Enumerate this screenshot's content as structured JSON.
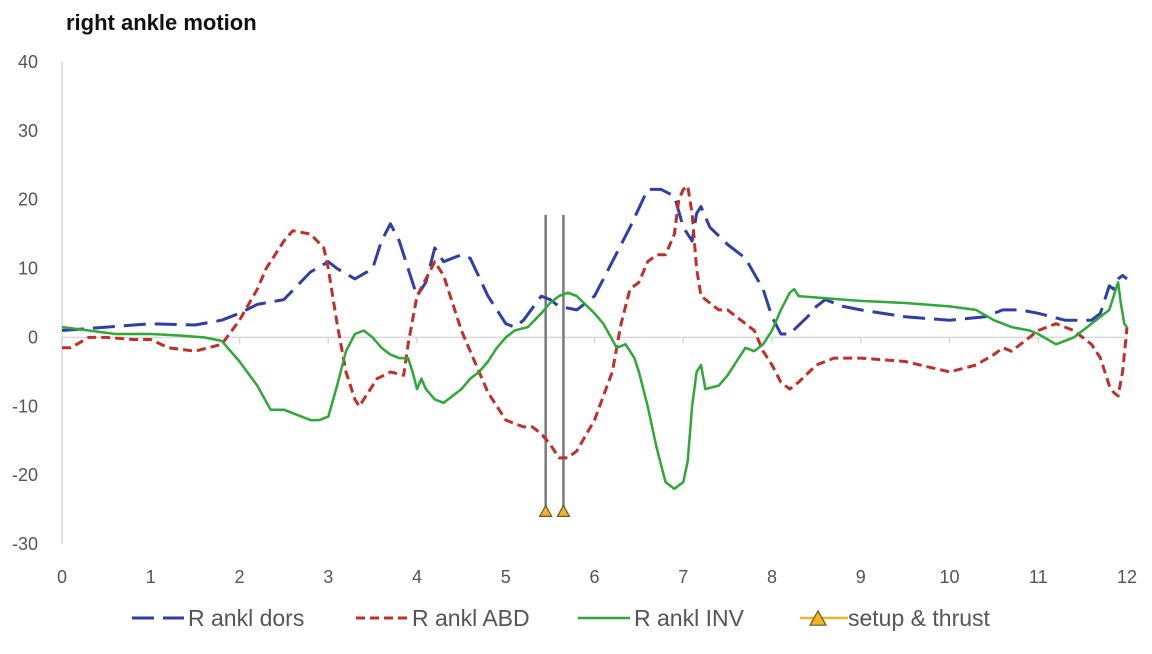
{
  "chart_data": {
    "type": "line",
    "title": "right ankle motion",
    "xlabel": "",
    "ylabel": "",
    "xlim": [
      0,
      12
    ],
    "ylim": [
      -30,
      40
    ],
    "xticks": [
      "0",
      "1",
      "2",
      "3",
      "4",
      "5",
      "6",
      "7",
      "8",
      "9",
      "10",
      "11",
      "12"
    ],
    "yticks": [
      "40",
      "30",
      "20",
      "10",
      "0",
      "-10",
      "-20",
      "-30"
    ],
    "grid": false,
    "legend_position": "bottom",
    "series": [
      {
        "name": "R ankl dors",
        "color": "#2e3fa8",
        "style": "long-dash",
        "points": [
          [
            0,
            1
          ],
          [
            0.5,
            1.5
          ],
          [
            1,
            2
          ],
          [
            1.5,
            1.8
          ],
          [
            1.8,
            2.5
          ],
          [
            2,
            3.5
          ],
          [
            2.2,
            4.8
          ],
          [
            2.5,
            5.5
          ],
          [
            2.8,
            9.5
          ],
          [
            3,
            11
          ],
          [
            3.1,
            10
          ],
          [
            3.3,
            8.5
          ],
          [
            3.5,
            10
          ],
          [
            3.6,
            14
          ],
          [
            3.7,
            16.5
          ],
          [
            3.8,
            14
          ],
          [
            3.9,
            10
          ],
          [
            4,
            6
          ],
          [
            4.1,
            8
          ],
          [
            4.2,
            13
          ],
          [
            4.3,
            11
          ],
          [
            4.4,
            11.5
          ],
          [
            4.5,
            12
          ],
          [
            4.6,
            11.5
          ],
          [
            4.8,
            6
          ],
          [
            5,
            2
          ],
          [
            5.1,
            1.5
          ],
          [
            5.2,
            2.5
          ],
          [
            5.4,
            6
          ],
          [
            5.5,
            5.5
          ],
          [
            5.6,
            4.5
          ],
          [
            5.8,
            4
          ],
          [
            6,
            6
          ],
          [
            6.2,
            11
          ],
          [
            6.4,
            16
          ],
          [
            6.6,
            21.5
          ],
          [
            6.75,
            21.5
          ],
          [
            6.9,
            20.5
          ],
          [
            7,
            16
          ],
          [
            7.1,
            14
          ],
          [
            7.15,
            18
          ],
          [
            7.2,
            19
          ],
          [
            7.3,
            16
          ],
          [
            7.5,
            13.5
          ],
          [
            7.7,
            11.5
          ],
          [
            7.9,
            7
          ],
          [
            8,
            3
          ],
          [
            8.1,
            0.5
          ],
          [
            8.2,
            0.5
          ],
          [
            8.4,
            3
          ],
          [
            8.5,
            4.5
          ],
          [
            8.6,
            5.5
          ],
          [
            8.8,
            4.5
          ],
          [
            9,
            4
          ],
          [
            9.5,
            3
          ],
          [
            10,
            2.5
          ],
          [
            10.4,
            3
          ],
          [
            10.6,
            4
          ],
          [
            10.8,
            4
          ],
          [
            11,
            3.5
          ],
          [
            11.3,
            2.5
          ],
          [
            11.6,
            2.5
          ],
          [
            11.7,
            3.5
          ],
          [
            11.8,
            7.5
          ],
          [
            11.85,
            7
          ],
          [
            11.9,
            8.5
          ],
          [
            11.95,
            9
          ],
          [
            12,
            8.5
          ]
        ]
      },
      {
        "name": "R ankl ABD",
        "color": "#c0302a",
        "style": "short-dash",
        "points": [
          [
            0,
            -1.5
          ],
          [
            0.1,
            -1.5
          ],
          [
            0.3,
            0
          ],
          [
            0.5,
            0
          ],
          [
            0.8,
            -0.3
          ],
          [
            1,
            -0.3
          ],
          [
            1.2,
            -1.5
          ],
          [
            1.5,
            -2
          ],
          [
            1.8,
            -1
          ],
          [
            2,
            2.5
          ],
          [
            2.2,
            7
          ],
          [
            2.3,
            10
          ],
          [
            2.5,
            14
          ],
          [
            2.6,
            15.5
          ],
          [
            2.8,
            15
          ],
          [
            2.95,
            13
          ],
          [
            3,
            10
          ],
          [
            3.1,
            2
          ],
          [
            3.2,
            -5
          ],
          [
            3.3,
            -9
          ],
          [
            3.35,
            -10
          ],
          [
            3.45,
            -8
          ],
          [
            3.55,
            -6
          ],
          [
            3.7,
            -5
          ],
          [
            3.85,
            -5.5
          ],
          [
            3.9,
            -1
          ],
          [
            4,
            6
          ],
          [
            4.1,
            8.5
          ],
          [
            4.2,
            11
          ],
          [
            4.3,
            9
          ],
          [
            4.4,
            5
          ],
          [
            4.5,
            1
          ],
          [
            4.7,
            -5
          ],
          [
            4.8,
            -8
          ],
          [
            5,
            -12
          ],
          [
            5.2,
            -13
          ],
          [
            5.3,
            -13
          ],
          [
            5.4,
            -14
          ],
          [
            5.5,
            -15.5
          ],
          [
            5.6,
            -17.5
          ],
          [
            5.7,
            -17.5
          ],
          [
            5.8,
            -16.5
          ],
          [
            6,
            -12
          ],
          [
            6.2,
            -5
          ],
          [
            6.3,
            2
          ],
          [
            6.4,
            7
          ],
          [
            6.5,
            8
          ],
          [
            6.6,
            11
          ],
          [
            6.7,
            12
          ],
          [
            6.8,
            12
          ],
          [
            6.9,
            15
          ],
          [
            6.95,
            20
          ],
          [
            7,
            21.5
          ],
          [
            7.05,
            22
          ],
          [
            7.1,
            18
          ],
          [
            7.15,
            10
          ],
          [
            7.2,
            6
          ],
          [
            7.3,
            5
          ],
          [
            7.4,
            4
          ],
          [
            7.5,
            4
          ],
          [
            7.6,
            3
          ],
          [
            7.7,
            2
          ],
          [
            7.8,
            1
          ],
          [
            7.9,
            -2
          ],
          [
            8,
            -4
          ],
          [
            8.1,
            -6.5
          ],
          [
            8.2,
            -7.5
          ],
          [
            8.3,
            -6.5
          ],
          [
            8.5,
            -4
          ],
          [
            8.7,
            -3
          ],
          [
            9,
            -3
          ],
          [
            9.5,
            -3.5
          ],
          [
            10,
            -5
          ],
          [
            10.3,
            -4
          ],
          [
            10.5,
            -2.5
          ],
          [
            10.6,
            -1.5
          ],
          [
            10.7,
            -2
          ],
          [
            10.8,
            -1
          ],
          [
            11,
            1
          ],
          [
            11.2,
            2
          ],
          [
            11.4,
            1
          ],
          [
            11.6,
            -1
          ],
          [
            11.7,
            -3
          ],
          [
            11.8,
            -7
          ],
          [
            11.85,
            -8
          ],
          [
            11.9,
            -8.5
          ],
          [
            11.95,
            -5
          ],
          [
            12,
            1.5
          ]
        ]
      },
      {
        "name": "R ankl INV",
        "color": "#2ea836",
        "style": "solid",
        "points": [
          [
            0,
            1.5
          ],
          [
            0.3,
            1
          ],
          [
            0.6,
            0.5
          ],
          [
            1,
            0.5
          ],
          [
            1.3,
            0.3
          ],
          [
            1.6,
            0
          ],
          [
            1.8,
            -0.5
          ],
          [
            2,
            -3.5
          ],
          [
            2.2,
            -7
          ],
          [
            2.35,
            -10.5
          ],
          [
            2.5,
            -10.5
          ],
          [
            2.6,
            -11
          ],
          [
            2.8,
            -12
          ],
          [
            2.9,
            -12
          ],
          [
            3,
            -11.5
          ],
          [
            3.1,
            -7
          ],
          [
            3.2,
            -2
          ],
          [
            3.3,
            0.5
          ],
          [
            3.4,
            1
          ],
          [
            3.5,
            0
          ],
          [
            3.6,
            -1.5
          ],
          [
            3.7,
            -2.5
          ],
          [
            3.8,
            -3
          ],
          [
            3.9,
            -3
          ],
          [
            3.95,
            -5
          ],
          [
            4,
            -7.5
          ],
          [
            4.05,
            -6
          ],
          [
            4.1,
            -7.5
          ],
          [
            4.2,
            -9
          ],
          [
            4.3,
            -9.5
          ],
          [
            4.35,
            -9
          ],
          [
            4.5,
            -7.5
          ],
          [
            4.6,
            -6
          ],
          [
            4.7,
            -5
          ],
          [
            4.8,
            -3.5
          ],
          [
            4.9,
            -1.5
          ],
          [
            5,
            0
          ],
          [
            5.1,
            1
          ],
          [
            5.25,
            1.5
          ],
          [
            5.4,
            3.5
          ],
          [
            5.5,
            5
          ],
          [
            5.6,
            6
          ],
          [
            5.7,
            6.5
          ],
          [
            5.8,
            6
          ],
          [
            6,
            3.5
          ],
          [
            6.1,
            2
          ],
          [
            6.25,
            -1.5
          ],
          [
            6.35,
            -1
          ],
          [
            6.45,
            -3
          ],
          [
            6.5,
            -5
          ],
          [
            6.6,
            -10
          ],
          [
            6.7,
            -16
          ],
          [
            6.8,
            -21
          ],
          [
            6.9,
            -22
          ],
          [
            7,
            -21
          ],
          [
            7.05,
            -18
          ],
          [
            7.1,
            -10
          ],
          [
            7.15,
            -5
          ],
          [
            7.2,
            -4
          ],
          [
            7.25,
            -7.5
          ],
          [
            7.4,
            -7
          ],
          [
            7.5,
            -5.5
          ],
          [
            7.6,
            -3.5
          ],
          [
            7.7,
            -1.5
          ],
          [
            7.8,
            -2
          ],
          [
            7.9,
            -1
          ],
          [
            8,
            1
          ],
          [
            8.1,
            4
          ],
          [
            8.2,
            6.5
          ],
          [
            8.25,
            7
          ],
          [
            8.3,
            6
          ],
          [
            8.5,
            5.8
          ],
          [
            8.8,
            5.5
          ],
          [
            9,
            5.3
          ],
          [
            9.5,
            5
          ],
          [
            10,
            4.5
          ],
          [
            10.3,
            4
          ],
          [
            10.5,
            2.5
          ],
          [
            10.7,
            1.5
          ],
          [
            10.9,
            1
          ],
          [
            11,
            0.5
          ],
          [
            11.2,
            -1
          ],
          [
            11.4,
            0
          ],
          [
            11.6,
            2
          ],
          [
            11.7,
            3
          ],
          [
            11.8,
            4
          ],
          [
            11.85,
            6
          ],
          [
            11.9,
            8
          ],
          [
            11.93,
            5
          ],
          [
            11.97,
            2
          ],
          [
            12,
            1.5
          ]
        ]
      }
    ],
    "markers": {
      "name": "setup & thrust",
      "color": "#f0b429",
      "line_color": "#7a7a7a",
      "points": [
        [
          5.45,
          -25.2
        ],
        [
          5.65,
          -25.2
        ]
      ],
      "line_range": [
        -25.2,
        17.8
      ]
    }
  }
}
